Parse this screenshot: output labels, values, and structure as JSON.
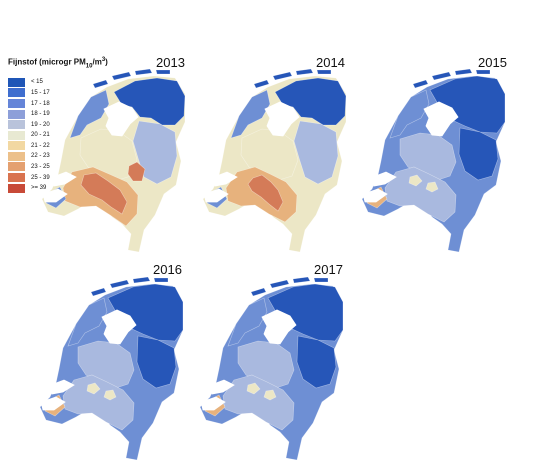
{
  "legend": {
    "title_prefix": "Fijnstof (microgr PM",
    "title_subscript": "10",
    "title_mid": "/m",
    "title_superscript": "3",
    "title_suffix": ")",
    "items": [
      {
        "label": "< 15",
        "color": "#1f56b7"
      },
      {
        "label": "15 - 17",
        "color": "#3f6ecf"
      },
      {
        "label": "17 - 18",
        "color": "#6585d8"
      },
      {
        "label": "18 - 19",
        "color": "#8d9fd9"
      },
      {
        "label": "19 - 20",
        "color": "#b9c3db"
      },
      {
        "label": "20 - 21",
        "color": "#e8e9d2"
      },
      {
        "label": "21 - 22",
        "color": "#f2d8a2"
      },
      {
        "label": "22 - 23",
        "color": "#ecc08a"
      },
      {
        "label": "23 - 25",
        "color": "#e4a070"
      },
      {
        "label": "25 - 39",
        "color": "#d9734f"
      },
      {
        "label": ">= 39",
        "color": "#c84a38"
      }
    ]
  },
  "maps": [
    {
      "year": "2013"
    },
    {
      "year": "2014"
    },
    {
      "year": "2015"
    },
    {
      "year": "2016"
    },
    {
      "year": "2017"
    }
  ],
  "colors": {
    "water": "#ffffff",
    "north_blue": "#2656b8",
    "mid_blue": "#6e8fd4",
    "light_blue": "#a9b9df",
    "cream": "#ece7c6",
    "orange": "#e7b27d",
    "red_orange": "#d47b58"
  }
}
